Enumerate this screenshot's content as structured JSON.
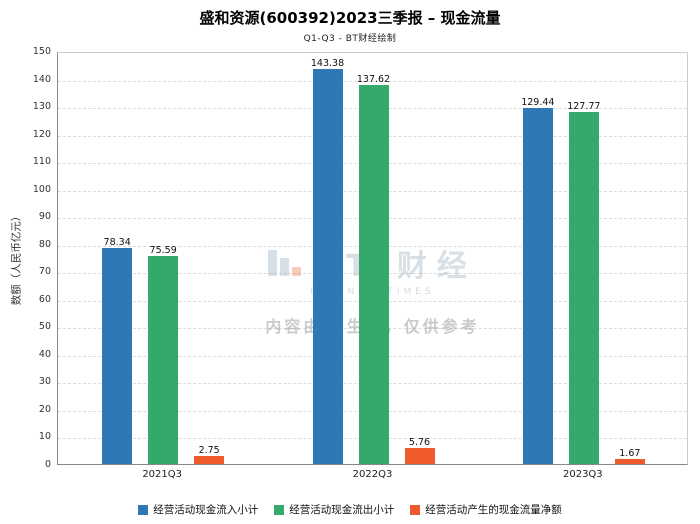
{
  "header": {
    "title": "盛和资源(600392)2023三季报 – 现金流量",
    "subtitle": "Q1-Q3 - BT财经绘制"
  },
  "watermark": {
    "brand": "BT 财经",
    "brand_sub": "BUSINESSTIMES",
    "note": "内容由AI生成，仅供参考"
  },
  "chart_data": {
    "type": "bar",
    "categories": [
      "2021Q3",
      "2022Q3",
      "2023Q3"
    ],
    "series": [
      {
        "name": "经营活动现金流入小计",
        "color": "#2e78b6",
        "values": [
          78.34,
          143.38,
          129.44
        ]
      },
      {
        "name": "经营活动现金流出小计",
        "color": "#35a96c",
        "values": [
          75.59,
          137.62,
          127.77
        ]
      },
      {
        "name": "经营活动产生的现金流量净额",
        "color": "#ee5a2c",
        "values": [
          2.75,
          5.76,
          1.67
        ]
      }
    ],
    "title": "盛和资源(600392)2023三季报 – 现金流量",
    "xlabel": "",
    "ylabel": "数额（人民币亿元）",
    "ylim": [
      0,
      150
    ],
    "ytick_step": 10,
    "grid": true,
    "legend_position": "bottom"
  }
}
